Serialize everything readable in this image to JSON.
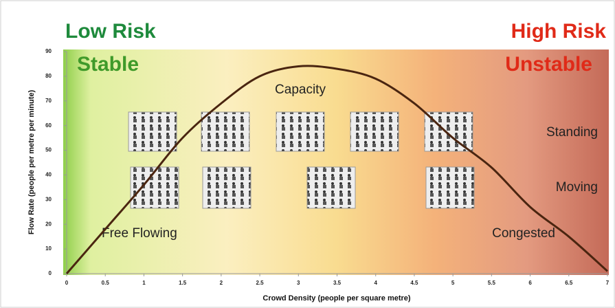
{
  "chart_data": {
    "type": "line",
    "title_left": "Low Risk",
    "subtitle_left": "Stable",
    "title_right": "High Risk",
    "subtitle_right": "Unstable",
    "annotations": [
      "Capacity",
      "Standing",
      "Moving",
      "Free Flowing",
      "Congested"
    ],
    "x_label": "Crowd Density (people per square metre)",
    "y_label": "Flow Rate (people per metre per minute)",
    "x": [
      0,
      0.5,
      1,
      1.5,
      2,
      2.5,
      3,
      3.5,
      4,
      4.5,
      5,
      5.5,
      6,
      6.5,
      7
    ],
    "values": [
      0,
      18,
      36,
      55,
      69,
      80,
      84,
      83,
      79,
      69,
      55,
      43,
      27,
      15,
      1
    ],
    "color": "#4a2510",
    "xlim": [
      0,
      7
    ],
    "xticks": [
      0,
      0.5,
      1,
      1.5,
      2,
      2.5,
      3,
      3.5,
      4,
      4.5,
      5,
      5.5,
      6,
      6.5,
      7
    ],
    "ylim": [
      0,
      90
    ],
    "yticks": [
      0,
      10,
      20,
      30,
      40,
      50,
      60,
      70,
      80,
      90
    ]
  }
}
